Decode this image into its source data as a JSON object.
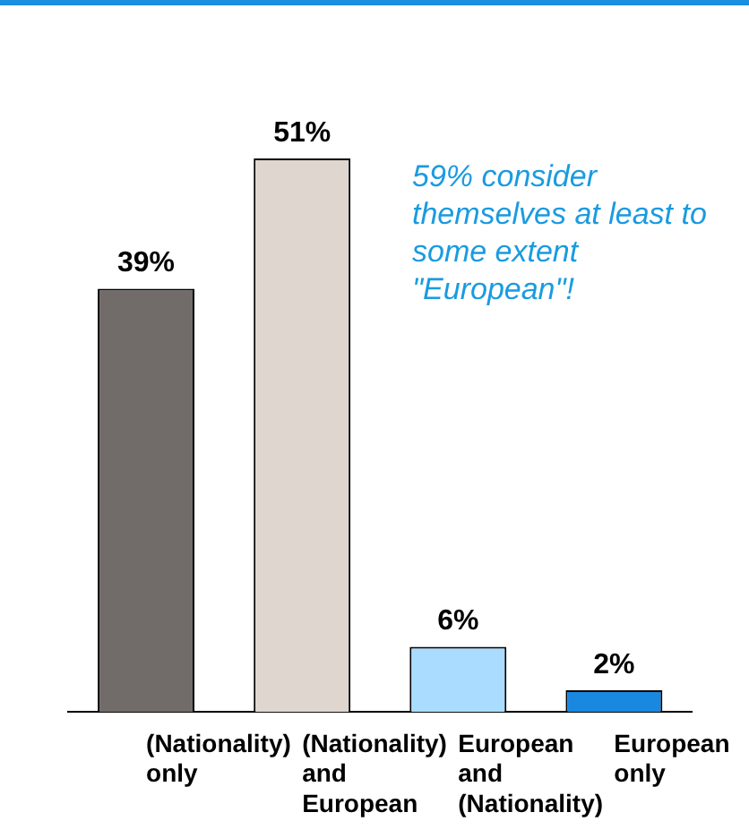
{
  "chart_data": {
    "type": "bar",
    "categories": [
      "(Nationality) only",
      "(Nationality) and European",
      "European and (Nationality)",
      "European only"
    ],
    "values": [
      39,
      51,
      6,
      2
    ],
    "colors": [
      "#716b69",
      "#dfd6d0",
      "#aadcff",
      "#1a88e0"
    ],
    "value_labels": [
      "39%",
      "51%",
      "6%",
      "2%"
    ],
    "annotations": [
      "59% consider themselves at least to some extent \"European\"!"
    ],
    "grid": false,
    "legend": false
  }
}
